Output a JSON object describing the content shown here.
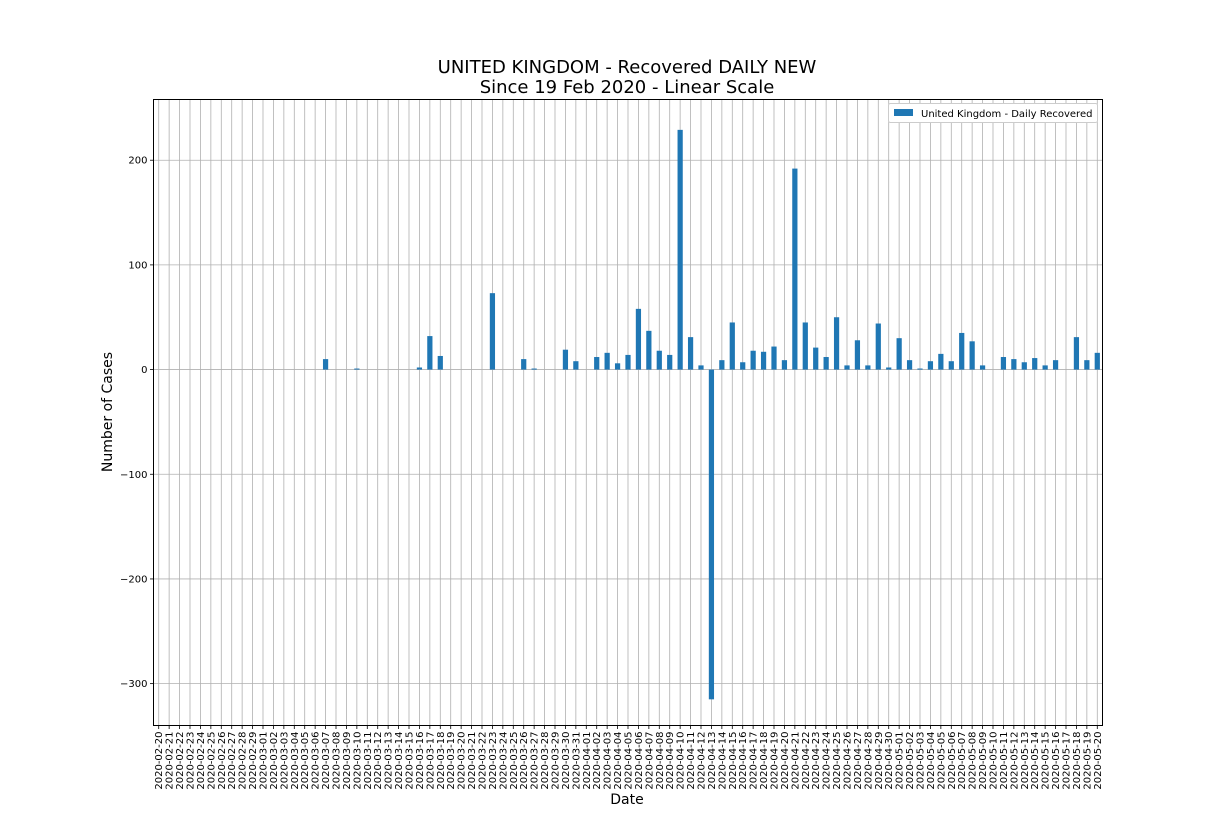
{
  "chart_data": {
    "type": "bar",
    "title": "UNITED KINGDOM - Recovered DAILY NEW",
    "subtitle": "Since 19 Feb 2020 - Linear Scale",
    "xlabel": "Date",
    "ylabel": "Number of Cases",
    "ylim": [
      -340,
      258
    ],
    "yticks": [
      -300,
      -200,
      -100,
      0,
      100,
      200
    ],
    "ytick_labels": [
      "−300",
      "−200",
      "−100",
      "0",
      "100",
      "200"
    ],
    "grid": true,
    "legend_position": "top-right",
    "bar_color": "#1f77b4",
    "series": [
      {
        "name": "United Kingdom - Daily Recovered"
      }
    ],
    "categories": [
      "2020-02-20",
      "2020-02-21",
      "2020-02-22",
      "2020-02-23",
      "2020-02-24",
      "2020-02-25",
      "2020-02-26",
      "2020-02-27",
      "2020-02-28",
      "2020-02-29",
      "2020-03-01",
      "2020-03-02",
      "2020-03-03",
      "2020-03-04",
      "2020-03-05",
      "2020-03-06",
      "2020-03-07",
      "2020-03-08",
      "2020-03-09",
      "2020-03-10",
      "2020-03-11",
      "2020-03-12",
      "2020-03-13",
      "2020-03-14",
      "2020-03-15",
      "2020-03-16",
      "2020-03-17",
      "2020-03-18",
      "2020-03-19",
      "2020-03-20",
      "2020-03-21",
      "2020-03-22",
      "2020-03-23",
      "2020-03-24",
      "2020-03-25",
      "2020-03-26",
      "2020-03-27",
      "2020-03-28",
      "2020-03-29",
      "2020-03-30",
      "2020-03-31",
      "2020-04-01",
      "2020-04-02",
      "2020-04-03",
      "2020-04-04",
      "2020-04-05",
      "2020-04-06",
      "2020-04-07",
      "2020-04-08",
      "2020-04-09",
      "2020-04-10",
      "2020-04-11",
      "2020-04-12",
      "2020-04-13",
      "2020-04-14",
      "2020-04-15",
      "2020-04-16",
      "2020-04-17",
      "2020-04-18",
      "2020-04-19",
      "2020-04-20",
      "2020-04-21",
      "2020-04-22",
      "2020-04-23",
      "2020-04-24",
      "2020-04-25",
      "2020-04-26",
      "2020-04-27",
      "2020-04-28",
      "2020-04-29",
      "2020-04-30",
      "2020-05-01",
      "2020-05-02",
      "2020-05-03",
      "2020-05-04",
      "2020-05-05",
      "2020-05-06",
      "2020-05-07",
      "2020-05-08",
      "2020-05-09",
      "2020-05-10",
      "2020-05-11",
      "2020-05-12",
      "2020-05-13",
      "2020-05-14",
      "2020-05-15",
      "2020-05-16",
      "2020-05-17",
      "2020-05-18",
      "2020-05-19",
      "2020-05-20"
    ],
    "values": [
      0,
      0,
      0,
      0,
      0,
      0,
      0,
      0,
      0,
      0,
      0,
      0,
      0,
      0,
      0,
      0,
      10,
      0,
      0,
      1,
      0,
      0,
      0,
      0,
      0,
      2,
      32,
      13,
      0,
      0,
      0,
      0,
      73,
      0,
      0,
      10,
      1,
      0,
      0,
      19,
      8,
      0,
      12,
      16,
      6,
      14,
      58,
      37,
      18,
      14,
      229,
      31,
      4,
      -315,
      9,
      45,
      7,
      18,
      17,
      22,
      9,
      192,
      45,
      21,
      12,
      50,
      4,
      28,
      4,
      44,
      2,
      30,
      9,
      1,
      8,
      15,
      8,
      35,
      27,
      4,
      0,
      12,
      10,
      7,
      11,
      4,
      9,
      0,
      31,
      9,
      16
    ]
  }
}
